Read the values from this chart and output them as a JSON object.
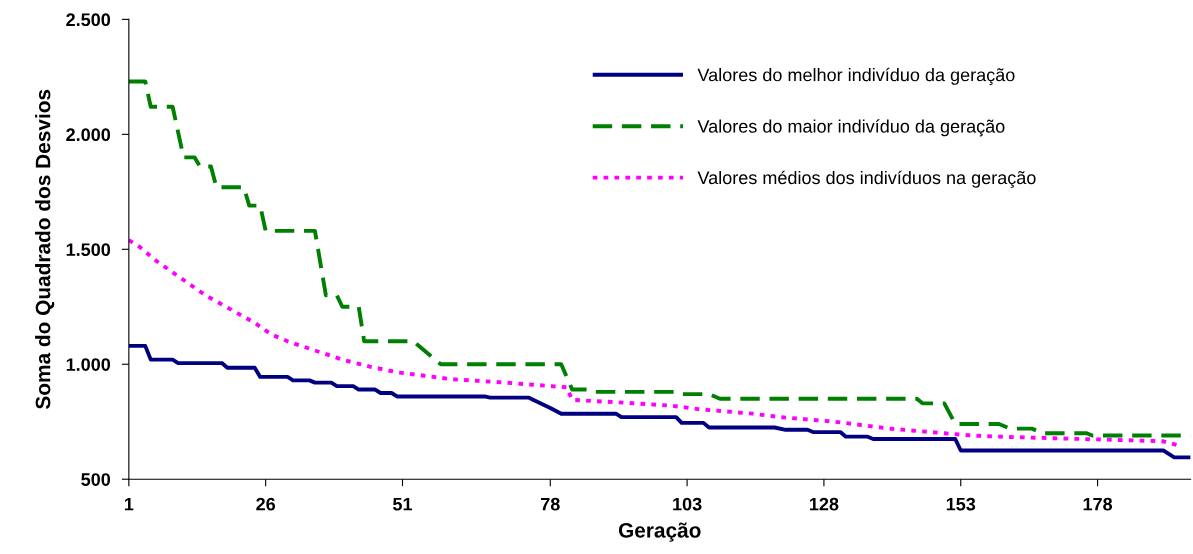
{
  "chart_data": {
    "type": "line",
    "xlabel": "Geração",
    "ylabel": "Soma do Quadrado dos Desvios",
    "xlim": [
      1,
      195
    ],
    "xticks": [
      1,
      26,
      51,
      78,
      103,
      128,
      153,
      178
    ],
    "ylim": [
      500,
      2500
    ],
    "yticks": [
      {
        "value": 500,
        "label": "500"
      },
      {
        "value": 1000,
        "label": "1.000"
      },
      {
        "value": 1500,
        "label": "1.500"
      },
      {
        "value": 2000,
        "label": "2.000"
      },
      {
        "value": 2500,
        "label": "2.500"
      }
    ],
    "grid": false,
    "legend": "top right",
    "marker": "none",
    "series": [
      {
        "name": "Valores do melhor indivíduo da geração",
        "color": "#000080",
        "line_style": "solid",
        "x": [
          1,
          4,
          5,
          9,
          10,
          18,
          19,
          24,
          25,
          30,
          31,
          34,
          35,
          38,
          39,
          42,
          43,
          46,
          47,
          49,
          50,
          66,
          67,
          74,
          78,
          80,
          90,
          91,
          101,
          102,
          106,
          107,
          119,
          121,
          125,
          126,
          131,
          132,
          136,
          137,
          152,
          153,
          190,
          192,
          195
        ],
        "values": [
          1080,
          1080,
          1020,
          1020,
          1005,
          1005,
          985,
          985,
          945,
          945,
          930,
          930,
          920,
          920,
          905,
          905,
          890,
          890,
          875,
          875,
          860,
          860,
          855,
          855,
          810,
          785,
          785,
          770,
          770,
          745,
          745,
          725,
          725,
          715,
          715,
          705,
          705,
          685,
          685,
          675,
          675,
          625,
          625,
          595,
          595
        ]
      },
      {
        "name": "Valores do maior indivíduo da geração",
        "color": "#008000",
        "line_style": "dashed",
        "x": [
          1,
          4,
          5,
          9,
          11,
          13,
          14,
          16,
          17,
          22,
          23,
          25,
          26,
          35,
          37,
          39,
          40,
          43,
          44,
          53,
          58,
          80,
          82,
          85,
          86,
          101,
          102,
          107,
          109,
          145,
          146,
          150,
          152,
          160,
          162,
          166,
          168,
          176,
          177,
          195
        ],
        "values": [
          2230,
          2230,
          2120,
          2120,
          1900,
          1900,
          1860,
          1860,
          1770,
          1770,
          1690,
          1690,
          1580,
          1580,
          1300,
          1300,
          1250,
          1250,
          1100,
          1100,
          1000,
          1000,
          890,
          890,
          880,
          880,
          870,
          870,
          850,
          850,
          830,
          830,
          740,
          740,
          720,
          720,
          700,
          700,
          690,
          690
        ]
      },
      {
        "name": "Valores médios dos indivíduos na geração",
        "color": "#ff00ff",
        "line_style": "dotted",
        "x": [
          1,
          3,
          6,
          9,
          12,
          15,
          18,
          21,
          24,
          27,
          30,
          35,
          40,
          45,
          50,
          55,
          60,
          70,
          78,
          81,
          82,
          90,
          100,
          105,
          110,
          115,
          120,
          125,
          130,
          135,
          140,
          145,
          150,
          155,
          160,
          170,
          180,
          190,
          193
        ],
        "values": [
          1540,
          1510,
          1450,
          1400,
          1350,
          1300,
          1260,
          1220,
          1180,
          1130,
          1100,
          1060,
          1020,
          990,
          965,
          950,
          935,
          920,
          905,
          900,
          845,
          835,
          820,
          805,
          795,
          785,
          770,
          760,
          750,
          735,
          720,
          710,
          700,
          690,
          685,
          678,
          672,
          665,
          645
        ]
      }
    ]
  }
}
